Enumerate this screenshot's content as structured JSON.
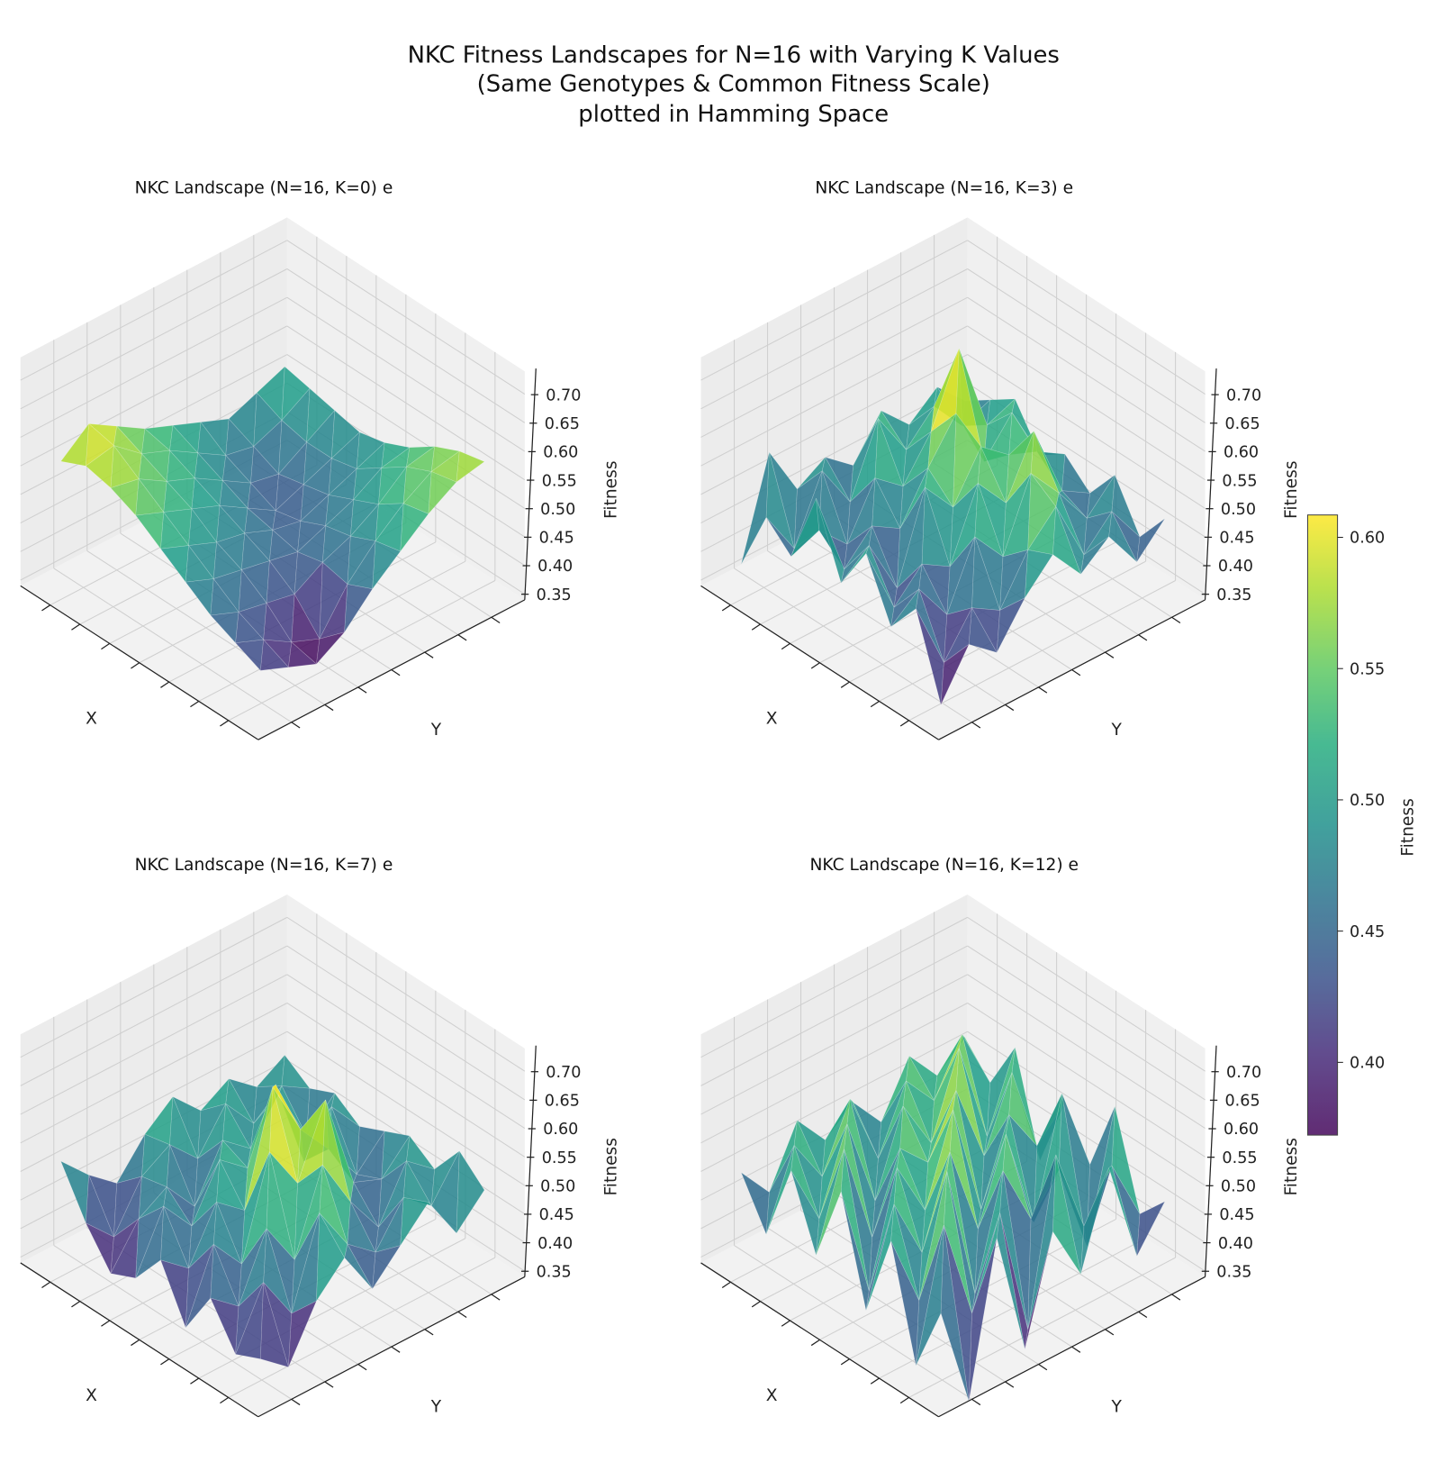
{
  "chart_data": {
    "type": "surface3d",
    "title": [
      "NKC Fitness Landscapes for N=16 with Varying K Values",
      "(Same Genotypes & Common Fitness Scale)",
      "plotted in Hamming Space"
    ],
    "colormap": "viridis",
    "colorbar": {
      "label": "Fitness",
      "range": [
        0.372,
        0.608
      ],
      "ticks": [
        "0.40",
        "0.45",
        "0.50",
        "0.55",
        "0.60"
      ]
    },
    "panels": [
      {
        "title": "NKC Landscape (N=16, K=0) e",
        "xlabel": "X",
        "ylabel": "Y",
        "zlabel": "Fitness",
        "zticks": [
          "0.35",
          "0.40",
          "0.45",
          "0.50",
          "0.55",
          "0.60",
          "0.65",
          "0.70"
        ],
        "zlim": [
          0.34,
          0.74
        ],
        "z": [
          [
            0.42,
            0.4,
            0.38,
            0.41,
            0.46,
            0.5,
            0.54,
            0.57,
            0.58
          ],
          [
            0.44,
            0.42,
            0.39,
            0.37,
            0.44,
            0.49,
            0.53,
            0.56,
            0.57
          ],
          [
            0.46,
            0.44,
            0.43,
            0.42,
            0.45,
            0.47,
            0.5,
            0.54,
            0.55
          ],
          [
            0.49,
            0.47,
            0.46,
            0.45,
            0.44,
            0.46,
            0.48,
            0.51,
            0.52
          ],
          [
            0.52,
            0.5,
            0.48,
            0.47,
            0.45,
            0.44,
            0.46,
            0.48,
            0.5
          ],
          [
            0.55,
            0.53,
            0.51,
            0.49,
            0.46,
            0.43,
            0.45,
            0.47,
            0.49
          ],
          [
            0.57,
            0.56,
            0.53,
            0.51,
            0.48,
            0.45,
            0.44,
            0.47,
            0.5
          ],
          [
            0.58,
            0.59,
            0.55,
            0.53,
            0.5,
            0.47,
            0.46,
            0.48,
            0.51
          ],
          [
            0.56,
            0.6,
            0.57,
            0.54,
            0.52,
            0.5,
            0.48,
            0.5,
            0.52
          ]
        ]
      },
      {
        "title": "NKC Landscape (N=16, K=3) e",
        "xlabel": "X",
        "ylabel": "Y",
        "zlabel": "Fitness",
        "zticks": [
          "0.35",
          "0.40",
          "0.45",
          "0.50",
          "0.55",
          "0.60",
          "0.65",
          "0.70"
        ],
        "zlim": [
          0.34,
          0.74
        ],
        "z": [
          [
            0.36,
            0.44,
            0.4,
            0.47,
            0.52,
            0.46,
            0.5,
            0.43,
            0.48
          ],
          [
            0.5,
            0.38,
            0.45,
            0.42,
            0.5,
            0.55,
            0.44,
            0.49,
            0.42
          ],
          [
            0.44,
            0.48,
            0.41,
            0.52,
            0.46,
            0.58,
            0.52,
            0.45,
            0.5
          ],
          [
            0.54,
            0.42,
            0.47,
            0.44,
            0.56,
            0.5,
            0.6,
            0.47,
            0.44
          ],
          [
            0.46,
            0.5,
            0.4,
            0.55,
            0.49,
            0.57,
            0.53,
            0.51,
            0.48
          ],
          [
            0.58,
            0.43,
            0.48,
            0.45,
            0.53,
            0.6,
            0.49,
            0.55,
            0.45
          ],
          [
            0.45,
            0.47,
            0.42,
            0.51,
            0.47,
            0.54,
            0.66,
            0.5,
            0.52
          ],
          [
            0.49,
            0.41,
            0.52,
            0.44,
            0.56,
            0.48,
            0.53,
            0.47,
            0.49
          ],
          [
            0.38,
            0.55,
            0.46,
            0.49,
            0.45,
            0.52,
            0.47,
            0.51,
            0.46
          ]
        ]
      },
      {
        "title": "NKC Landscape (N=16, K=7) e",
        "xlabel": "X",
        "ylabel": "Y",
        "zlabel": "Fitness",
        "zticks": [
          "0.35",
          "0.40",
          "0.45",
          "0.50",
          "0.55",
          "0.60",
          "0.65",
          "0.70"
        ],
        "zlim": [
          0.34,
          0.74
        ],
        "z": [
          [
            0.4,
            0.36,
            0.45,
            0.5,
            0.42,
            0.47,
            0.52,
            0.44,
            0.49
          ],
          [
            0.38,
            0.48,
            0.4,
            0.55,
            0.47,
            0.43,
            0.5,
            0.46,
            0.53
          ],
          [
            0.45,
            0.41,
            0.52,
            0.44,
            0.58,
            0.49,
            0.42,
            0.51,
            0.47
          ],
          [
            0.37,
            0.49,
            0.43,
            0.6,
            0.52,
            0.64,
            0.47,
            0.45,
            0.5
          ],
          [
            0.46,
            0.42,
            0.51,
            0.47,
            0.66,
            0.56,
            0.5,
            0.43,
            0.48
          ],
          [
            0.4,
            0.5,
            0.44,
            0.53,
            0.49,
            0.61,
            0.45,
            0.52,
            0.46
          ],
          [
            0.38,
            0.45,
            0.48,
            0.42,
            0.51,
            0.47,
            0.54,
            0.44,
            0.49
          ],
          [
            0.44,
            0.39,
            0.47,
            0.5,
            0.45,
            0.52,
            0.46,
            0.5,
            0.47
          ],
          [
            0.52,
            0.47,
            0.43,
            0.49,
            0.53,
            0.48,
            0.51,
            0.47,
            0.5
          ]
        ]
      },
      {
        "title": "NKC Landscape (N=16, K=12) e",
        "xlabel": "X",
        "ylabel": "Y",
        "zlabel": "Fitness",
        "zticks": [
          "0.35",
          "0.40",
          "0.45",
          "0.50",
          "0.55",
          "0.60",
          "0.65",
          "0.70"
        ],
        "zlim": [
          0.34,
          0.74
        ],
        "z": [
          [
            0.48,
            0.3,
            0.56,
            0.34,
            0.52,
            0.42,
            0.58,
            0.4,
            0.47
          ],
          [
            0.36,
            0.58,
            0.4,
            0.55,
            0.32,
            0.6,
            0.45,
            0.53,
            0.42
          ],
          [
            0.55,
            0.42,
            0.62,
            0.38,
            0.57,
            0.46,
            0.52,
            0.36,
            0.58
          ],
          [
            0.4,
            0.56,
            0.45,
            0.6,
            0.44,
            0.58,
            0.4,
            0.6,
            0.45
          ],
          [
            0.58,
            0.38,
            0.57,
            0.47,
            0.62,
            0.42,
            0.56,
            0.48,
            0.53
          ],
          [
            0.44,
            0.6,
            0.42,
            0.55,
            0.5,
            0.6,
            0.46,
            0.58,
            0.4
          ],
          [
            0.56,
            0.45,
            0.59,
            0.43,
            0.57,
            0.48,
            0.62,
            0.44,
            0.57
          ],
          [
            0.42,
            0.55,
            0.47,
            0.58,
            0.45,
            0.56,
            0.5,
            0.59,
            0.48
          ],
          [
            0.5,
            0.44,
            0.54,
            0.48,
            0.52,
            0.46,
            0.55,
            0.49,
            0.53
          ]
        ]
      }
    ]
  }
}
